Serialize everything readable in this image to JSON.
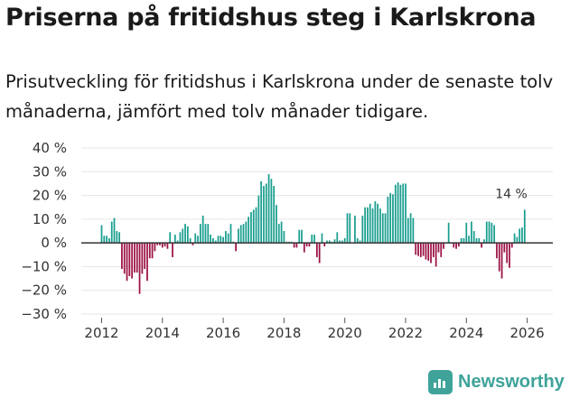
{
  "header": {
    "title": "Priserna på fritidshus steg i Karlskrona",
    "subtitle": "Prisutveckling för fritidshus i Karlskrona under de senaste tolv månaderna, jämfört med tolv månader tidigare."
  },
  "brand": {
    "name": "Newsworthy"
  },
  "colors": {
    "positive": "#1a9e8f",
    "negative": "#9b1145",
    "zero_line": "#333333",
    "grid": "#e6e6e6",
    "brand": "#3fa39a"
  },
  "chart_data": {
    "type": "bar",
    "title": "Priserna på fritidshus steg i Karlskrona",
    "xlabel": "",
    "ylabel": "",
    "ylim": [
      -30,
      40
    ],
    "yticks": [
      40,
      30,
      20,
      10,
      0,
      -10,
      -20,
      -30
    ],
    "ytick_labels": [
      "40 %",
      "30 %",
      "20 %",
      "10 %",
      "0 %",
      "−10 %",
      "−20 %",
      "−30 %"
    ],
    "xticks": [
      2012,
      2014,
      2016,
      2018,
      2020,
      2022,
      2024,
      2026
    ],
    "start": {
      "year": 2012,
      "month": 1
    },
    "unit": "%",
    "annotation": {
      "text": "14 %",
      "target": "last"
    },
    "values": [
      7.5,
      3,
      3,
      2,
      9,
      10.5,
      5,
      4.5,
      -11,
      -13,
      -16,
      -14,
      -15,
      -12.5,
      -12.5,
      -21.5,
      -13,
      -11,
      -16,
      -6.5,
      -6.5,
      -3.5,
      -1,
      -1,
      -2,
      -1.5,
      -2.5,
      4.5,
      -6,
      3.5,
      1,
      4.5,
      6,
      8,
      7,
      2,
      -1,
      4,
      3,
      8,
      11.5,
      8,
      8,
      3.5,
      2,
      1,
      3,
      3,
      2.5,
      5,
      4,
      8,
      0.5,
      -3.5,
      6,
      7.5,
      8,
      9,
      11,
      13,
      14,
      15,
      20,
      26,
      24,
      25,
      29,
      27,
      24,
      16,
      8,
      9,
      5,
      0.5,
      0.5,
      0.5,
      -2,
      -2,
      5.5,
      5.5,
      -4,
      -1.5,
      -1.5,
      3.5,
      3.5,
      -6,
      -8.5,
      4,
      -1.5,
      1,
      1,
      0.5,
      1.5,
      4.5,
      1,
      1,
      2,
      12.5,
      12.5,
      0,
      11.5,
      2,
      1,
      11.5,
      15,
      15,
      16.5,
      14.5,
      17.5,
      16.5,
      14.5,
      12.5,
      12.5,
      19.5,
      21,
      20.5,
      24.5,
      25.5,
      24.5,
      25,
      25,
      10.5,
      12.5,
      10.5,
      -5,
      -5.5,
      -6,
      -5.5,
      -7,
      -7.5,
      -8.5,
      -6,
      -10,
      -4,
      -6,
      -2.5,
      0,
      8.5,
      0,
      -2,
      -2.5,
      -1.5,
      2,
      2,
      8.5,
      3,
      9,
      5,
      2,
      2,
      -2,
      1.5,
      9,
      9,
      8.5,
      7.5,
      -6.5,
      -12,
      -15,
      -4,
      -8.5,
      -10.5,
      -2,
      4,
      2.5,
      6,
      6.5,
      14
    ]
  }
}
